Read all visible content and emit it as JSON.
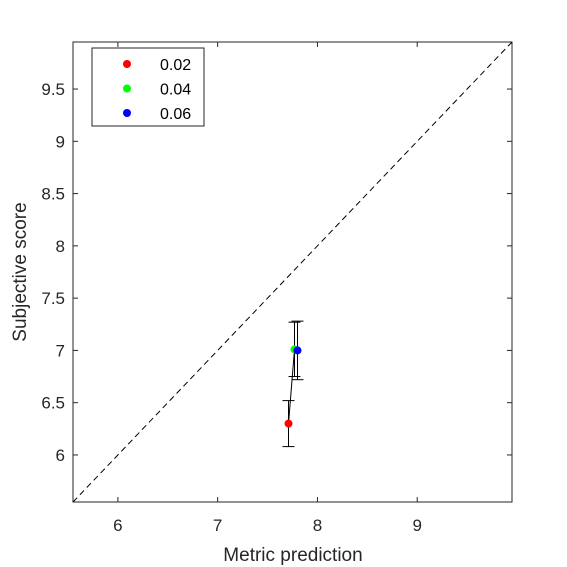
{
  "chart_data": {
    "type": "scatter",
    "xlabel": "Metric prediction",
    "ylabel": "Subjective score",
    "xlim": [
      5.55,
      9.95
    ],
    "ylim": [
      5.55,
      9.95
    ],
    "xticks": [
      6,
      7,
      8,
      9
    ],
    "yticks": [
      6,
      6.5,
      7,
      7.5,
      8,
      8.5,
      9,
      9.5
    ],
    "xtick_labels": [
      "6",
      "7",
      "8",
      "9"
    ],
    "ytick_labels": [
      "6",
      "6.5",
      "7",
      "7.5",
      "8",
      "8.5",
      "9",
      "9.5"
    ],
    "grid": false,
    "legend_position": "top-left",
    "reference_line": "identity (y = x), dashed",
    "series": [
      {
        "name": "0.02",
        "color": "#ff0000",
        "x": 7.71,
        "y": 6.3,
        "y_low": 6.08,
        "y_high": 6.52
      },
      {
        "name": "0.04",
        "color": "#00ff00",
        "x": 7.77,
        "y": 7.01,
        "y_low": 6.75,
        "y_high": 7.27
      },
      {
        "name": "0.06",
        "color": "#0000ff",
        "x": 7.8,
        "y": 7.0,
        "y_low": 6.72,
        "y_high": 7.28
      }
    ],
    "connecting_line": "black line through points in series order"
  }
}
